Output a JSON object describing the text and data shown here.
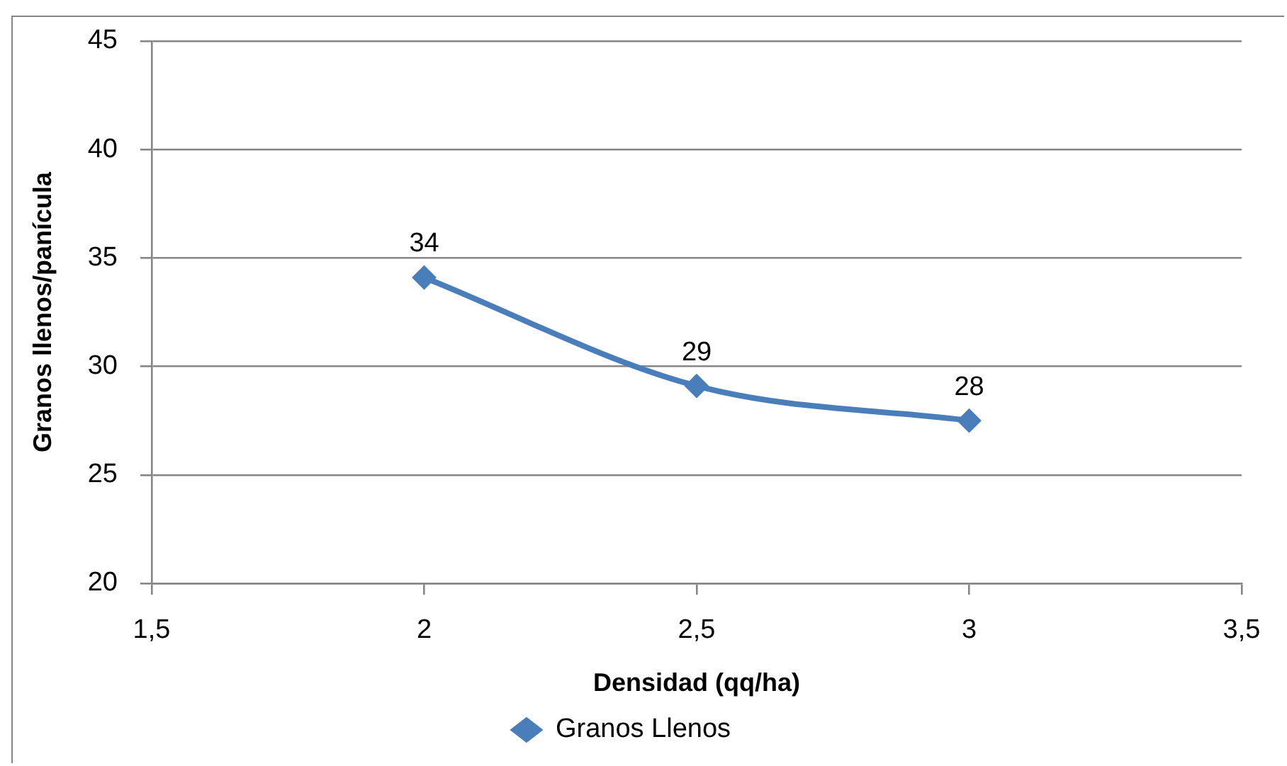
{
  "chart_data": {
    "type": "line",
    "xlabel": "Densidad (qq/ha)",
    "ylabel": "Granos llenos/panícula",
    "x": [
      2,
      2.5,
      3
    ],
    "series": [
      {
        "name": "Granos Llenos",
        "color": "#4a7ebb",
        "values": [
          34.1,
          29.1,
          27.5
        ],
        "value_labels": [
          "34",
          "29",
          "28"
        ]
      }
    ],
    "xlim": [
      1.5,
      3.5
    ],
    "xticks": [
      {
        "value": 1.5,
        "label": "1,5"
      },
      2,
      {
        "value": 2.5,
        "label": "2,5"
      },
      3,
      {
        "value": 3.5,
        "label": "3,5"
      }
    ],
    "ylim": [
      20,
      45
    ],
    "yticks": [
      20,
      25,
      30,
      35,
      40,
      45
    ],
    "grid": "y",
    "legend": "bottom",
    "marker": "diamond",
    "line_style": "solid"
  }
}
